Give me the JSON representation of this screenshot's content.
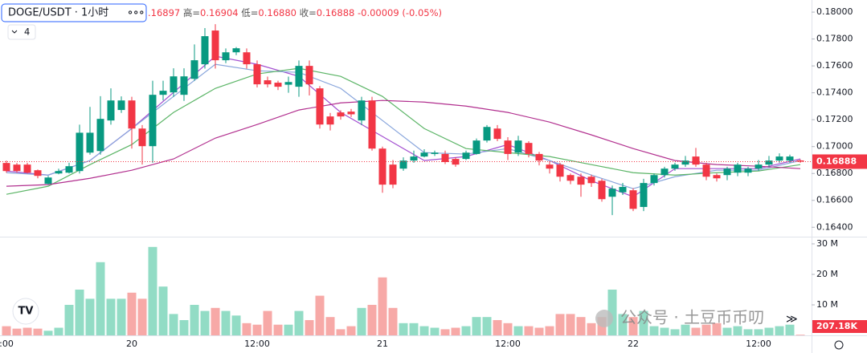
{
  "chart_data": {
    "type": "candlestick",
    "header": {
      "symbol": "DOGE/USDT · 1小时",
      "parts": [
        ".16897",
        "高=",
        "0.16904",
        "低=",
        "0.16880",
        "收=",
        "0.16888",
        "-0.00009 (-0.05%)"
      ],
      "indicator_count": "4"
    },
    "watermark": "公众号 · 土豆币币叨",
    "categories": [
      ":00",
      null,
      null,
      null,
      null,
      null,
      null,
      null,
      null,
      null,
      null,
      null,
      "20",
      null,
      null,
      null,
      null,
      null,
      null,
      null,
      null,
      null,
      null,
      null,
      "12:00",
      null,
      null,
      null,
      null,
      null,
      null,
      null,
      null,
      null,
      null,
      null,
      "21",
      null,
      null,
      null,
      null,
      null,
      null,
      null,
      null,
      null,
      null,
      null,
      "12:00",
      null,
      null,
      null,
      null,
      null,
      null,
      null,
      null,
      null,
      null,
      null,
      "22",
      null,
      null,
      null,
      null,
      null,
      null,
      null,
      null,
      null,
      null,
      null,
      "12:00",
      null,
      null,
      null,
      null
    ],
    "open": [
      0.16878,
      0.16866,
      0.16866,
      0.16824,
      0.16723,
      0.168,
      0.16806,
      0.16818,
      0.16955,
      0.16967,
      0.17194,
      0.17272,
      0.17343,
      0.17134,
      0.17003,
      0.17385,
      0.17403,
      0.17385,
      0.17504,
      0.17612,
      0.17863,
      0.17642,
      0.17701,
      0.17701,
      0.17612,
      0.17493,
      0.17475,
      0.1746,
      0.17445,
      0.176,
      0.17433,
      0.17224,
      0.17254,
      0.1726,
      0.17194,
      0.17343,
      0.16985,
      0.16866,
      0.16836,
      0.16896,
      0.16926,
      0.16945,
      0.16945,
      0.16908,
      0.16908,
      0.16945,
      0.17045,
      0.17134,
      0.17045,
      0.16955,
      0.17027,
      0.16945,
      0.16866,
      0.16866,
      0.16788,
      0.16776,
      0.16776,
      0.16746,
      0.16627,
      0.1666,
      0.16675,
      0.16551,
      0.16729,
      0.16788,
      0.16836,
      0.16866,
      0.16926,
      0.16866,
      0.16788,
      0.16788,
      0.16806,
      0.16806,
      0.16836,
      0.16866,
      0.16896,
      0.16896,
      0.16897
    ],
    "high": [
      0.16896,
      0.16878,
      0.1688,
      0.1683,
      0.16782,
      0.16836,
      0.1688,
      0.17163,
      0.17295,
      0.17375,
      0.17433,
      0.17373,
      0.1737,
      0.1716,
      0.1749,
      0.1749,
      0.17582,
      0.17582,
      0.1776,
      0.17881,
      0.1791,
      0.1773,
      0.1774,
      0.1773,
      0.1764,
      0.1752,
      0.1749,
      0.1752,
      0.1764,
      0.1764,
      0.1745,
      0.1725,
      0.1727,
      0.1728,
      0.1737,
      0.1737,
      0.17,
      0.169,
      0.1692,
      0.1697,
      0.1698,
      0.1697,
      0.1697,
      0.1692,
      0.1697,
      0.1706,
      0.1716,
      0.1716,
      0.1707,
      0.1708,
      0.1704,
      0.1696,
      0.1689,
      0.1688,
      0.168,
      0.168,
      0.1679,
      0.1676,
      0.1671,
      0.1673,
      0.1669,
      0.1676,
      0.168,
      0.1685,
      0.1688,
      0.1693,
      0.1699,
      0.1688,
      0.168,
      0.1685,
      0.1688,
      0.1685,
      0.169,
      0.1693,
      0.1695,
      0.1694,
      0.16904
    ],
    "low": [
      0.16806,
      0.16806,
      0.168,
      0.16764,
      0.16717,
      0.16794,
      0.168,
      0.168,
      0.1694,
      0.1694,
      0.17163,
      0.1725,
      0.16985,
      0.16866,
      0.1688,
      0.17343,
      0.1737,
      0.1734,
      0.1749,
      0.1758,
      0.1758,
      0.1762,
      0.1768,
      0.1758,
      0.1744,
      0.1744,
      0.1742,
      0.174,
      0.1737,
      0.1738,
      0.17134,
      0.1712,
      0.172,
      0.1722,
      0.1716,
      0.1697,
      0.16657,
      0.1669,
      0.1682,
      0.1688,
      0.1692,
      0.1693,
      0.1687,
      0.1685,
      0.169,
      0.1694,
      0.1703,
      0.1704,
      0.169,
      0.1693,
      0.1692,
      0.1686,
      0.168,
      0.1674,
      0.1672,
      0.16627,
      0.167,
      0.1659,
      0.1649,
      0.1664,
      0.1652,
      0.1652,
      0.1671,
      0.1677,
      0.1682,
      0.1685,
      0.1685,
      0.1675,
      0.1674,
      0.1675,
      0.1678,
      0.1678,
      0.1682,
      0.1685,
      0.1688,
      0.1688,
      0.1688
    ],
    "close": [
      0.16818,
      0.16818,
      0.16806,
      0.16782,
      0.1677,
      0.16818,
      0.16854,
      0.17103,
      0.17103,
      0.17206,
      0.17343,
      0.17343,
      0.17134,
      0.17003,
      0.17385,
      0.17415,
      0.17522,
      0.17522,
      0.17642,
      0.17821,
      0.17642,
      0.17701,
      0.17731,
      0.17612,
      0.17463,
      0.17463,
      0.17445,
      0.1748,
      0.176,
      0.17463,
      0.17164,
      0.17164,
      0.17224,
      0.1724,
      0.17343,
      0.16985,
      0.16717,
      0.16717,
      0.16896,
      0.16926,
      0.16955,
      0.16955,
      0.16885,
      0.16866,
      0.16955,
      0.17045,
      0.17146,
      0.17057,
      0.16945,
      0.17045,
      0.16945,
      0.16896,
      0.16836,
      0.16776,
      0.16746,
      0.16717,
      0.16728,
      0.16609,
      0.16687,
      0.167,
      0.16537,
      0.16729,
      0.16788,
      0.16836,
      0.16866,
      0.16896,
      0.16866,
      0.16776,
      0.16764,
      0.16836,
      0.16866,
      0.16836,
      0.16866,
      0.16896,
      0.16926,
      0.16926,
      0.16888
    ],
    "volume": [
      3,
      2.2,
      2.5,
      2.2,
      1.5,
      2.5,
      10,
      15,
      12,
      24,
      12,
      12,
      14,
      12,
      29,
      16,
      7,
      5,
      10,
      8,
      9,
      8,
      6.5,
      4,
      3.5,
      8,
      3.5,
      3.5,
      8,
      5,
      13,
      6,
      2,
      3,
      9,
      10,
      19,
      9,
      4,
      4,
      3,
      2.5,
      2,
      2.5,
      3,
      6,
      6,
      5,
      4,
      3,
      3,
      2.5,
      3,
      7,
      7,
      6,
      4,
      6,
      15,
      7,
      6,
      8,
      3,
      2.5,
      2,
      3.5,
      2.5,
      3.5,
      4,
      2.5,
      3,
      2,
      2,
      2.5,
      3,
      3.5,
      0.20718
    ],
    "up_color": "#089981",
    "down_color": "#f23645",
    "up_volume_color": "#92dcc5",
    "down_volume_color": "#f7a9a7",
    "overlays": [
      {
        "color": "#a34fd0",
        "x": [
          0,
          4,
          8,
          12,
          16,
          20,
          24,
          28,
          32,
          36,
          40,
          44,
          48,
          52,
          56,
          60,
          64,
          68,
          72,
          76
        ],
        "values": [
          0.16818,
          0.16788,
          0.16896,
          0.17134,
          0.17403,
          0.17672,
          0.17612,
          0.17522,
          0.17254,
          0.17075,
          0.16896,
          0.16926,
          0.17015,
          0.16896,
          0.16746,
          0.16627,
          0.16836,
          0.16836,
          0.16836,
          0.16908
        ]
      },
      {
        "color": "#88a5dc",
        "x": [
          0,
          4,
          8,
          12,
          16,
          20,
          24,
          28,
          32,
          36,
          40,
          44,
          48,
          52,
          56,
          60,
          64,
          68,
          72,
          76
        ],
        "values": [
          0.16806,
          0.16788,
          0.16896,
          0.17134,
          0.17373,
          0.17612,
          0.17564,
          0.17552,
          0.17433,
          0.17194,
          0.16955,
          0.16944,
          0.16985,
          0.16896,
          0.16788,
          0.16687,
          0.16776,
          0.16824,
          0.16824,
          0.16896
        ]
      },
      {
        "color": "#5cb567",
        "x": [
          0,
          4,
          8,
          12,
          16,
          20,
          24,
          28,
          32,
          36,
          40,
          44,
          48,
          52,
          56,
          60,
          64,
          68,
          72,
          76
        ],
        "values": [
          0.16645,
          0.16705,
          0.16866,
          0.17015,
          0.17254,
          0.17433,
          0.1754,
          0.17582,
          0.17522,
          0.17373,
          0.17134,
          0.16985,
          0.16955,
          0.16926,
          0.16866,
          0.16806,
          0.16788,
          0.16806,
          0.16818,
          0.16866
        ]
      },
      {
        "color": "#b2308f",
        "x": [
          0,
          4,
          8,
          12,
          16,
          20,
          24,
          28,
          32,
          36,
          40,
          44,
          48,
          52,
          56,
          60,
          64,
          68,
          72,
          76
        ],
        "values": [
          0.16705,
          0.16717,
          0.16764,
          0.16824,
          0.16908,
          0.17063,
          0.17164,
          0.17272,
          0.17325,
          0.17343,
          0.17331,
          0.17301,
          0.17254,
          0.17182,
          0.17087,
          0.16985,
          0.16896,
          0.16866,
          0.16854,
          0.16836
        ]
      }
    ],
    "ylim": [
      0.1633,
      0.1809
    ],
    "yticks": [
      {
        "value": 0.164,
        "label": "0.16400"
      },
      {
        "value": 0.166,
        "label": "0.16600"
      },
      {
        "value": 0.168,
        "label": "0.16800"
      },
      {
        "value": 0.17,
        "label": "0.17000"
      },
      {
        "value": 0.172,
        "label": "0.17200"
      },
      {
        "value": 0.174,
        "label": "0.17400"
      },
      {
        "value": 0.176,
        "label": "0.17600"
      },
      {
        "value": 0.178,
        "label": "0.17800"
      },
      {
        "value": 0.18,
        "label": "0.18000"
      }
    ],
    "last_price": {
      "value": 0.16888,
      "label": "0.16888"
    },
    "volume_ylim": [
      0,
      32.1
    ],
    "volume_yticks": [
      {
        "value": 10,
        "label": "10 M"
      },
      {
        "value": 20,
        "label": "20 M"
      },
      {
        "value": 30,
        "label": "30 M"
      }
    ],
    "last_volume": {
      "value": 0.20718,
      "label": "207.18K"
    }
  }
}
